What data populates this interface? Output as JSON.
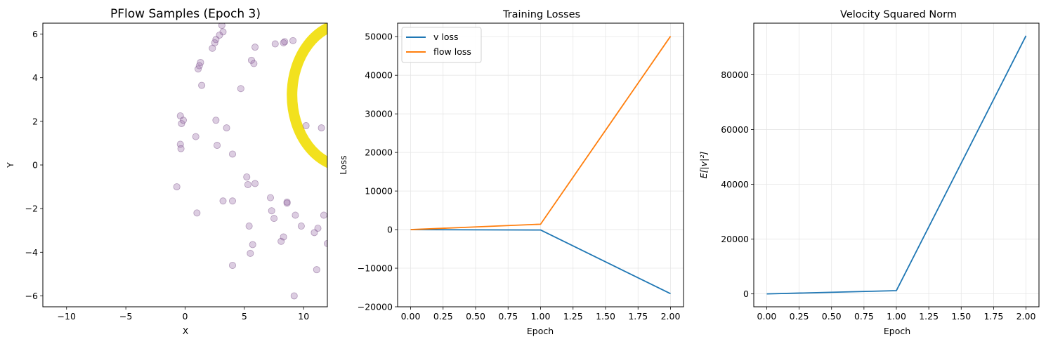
{
  "chart_data": [
    {
      "type": "scatter",
      "title": "PFlow Samples (Epoch 3)",
      "xlabel": "X",
      "ylabel": "Y",
      "xlim": [
        -12,
        12
      ],
      "ylim": [
        -6.5,
        6.5
      ],
      "grid": false,
      "xticks": [
        -10,
        -5,
        0,
        5,
        10
      ],
      "yticks": [
        -6,
        -4,
        -2,
        0,
        2,
        4,
        6
      ],
      "scatter_color": "#9b6fa8",
      "arc_color": "#f2e11e",
      "points": [
        [
          3.1,
          6.4
        ],
        [
          3.2,
          6.1
        ],
        [
          2.9,
          5.95
        ],
        [
          2.6,
          5.75
        ],
        [
          2.5,
          5.6
        ],
        [
          2.3,
          5.35
        ],
        [
          1.3,
          4.7
        ],
        [
          1.2,
          4.55
        ],
        [
          1.1,
          4.4
        ],
        [
          1.4,
          3.65
        ],
        [
          2.6,
          2.05
        ],
        [
          4.7,
          3.5
        ],
        [
          5.6,
          4.8
        ],
        [
          5.8,
          4.65
        ],
        [
          5.9,
          5.4
        ],
        [
          7.6,
          5.55
        ],
        [
          8.4,
          5.65
        ],
        [
          9.1,
          5.7
        ],
        [
          8.3,
          5.6
        ],
        [
          -0.4,
          2.25
        ],
        [
          -0.3,
          1.9
        ],
        [
          -0.15,
          2.05
        ],
        [
          0.9,
          1.3
        ],
        [
          2.7,
          0.9
        ],
        [
          3.5,
          1.7
        ],
        [
          -0.4,
          0.95
        ],
        [
          -0.35,
          0.75
        ],
        [
          4.0,
          0.5
        ],
        [
          -0.7,
          -1.0
        ],
        [
          5.2,
          -0.55
        ],
        [
          5.3,
          -0.9
        ],
        [
          5.9,
          -0.85
        ],
        [
          3.2,
          -1.65
        ],
        [
          4.0,
          -1.65
        ],
        [
          1.0,
          -2.2
        ],
        [
          7.2,
          -1.5
        ],
        [
          7.3,
          -2.1
        ],
        [
          7.5,
          -2.45
        ],
        [
          8.6,
          -1.7
        ],
        [
          8.6,
          -1.75
        ],
        [
          9.3,
          -2.3
        ],
        [
          9.8,
          -2.8
        ],
        [
          5.4,
          -2.8
        ],
        [
          5.7,
          -3.65
        ],
        [
          5.5,
          -4.05
        ],
        [
          4.0,
          -4.6
        ],
        [
          8.1,
          -3.5
        ],
        [
          8.3,
          -3.3
        ],
        [
          10.9,
          -3.1
        ],
        [
          11.2,
          -2.9
        ],
        [
          11.7,
          -2.3
        ],
        [
          12.0,
          -3.6
        ],
        [
          11.1,
          -4.8
        ],
        [
          9.2,
          -6.0
        ],
        [
          10.2,
          1.8
        ],
        [
          11.5,
          1.7
        ]
      ]
    },
    {
      "type": "line",
      "title": "Training Losses",
      "xlabel": "Epoch",
      "ylabel": "Loss",
      "xlim": [
        -0.1,
        2.1
      ],
      "ylim": [
        -20000,
        53500
      ],
      "grid": true,
      "legend": "top-left",
      "x": [
        0,
        1,
        2
      ],
      "xticks": [
        "0.00",
        "0.25",
        "0.50",
        "0.75",
        "1.00",
        "1.25",
        "1.50",
        "1.75",
        "2.00"
      ],
      "yticks": [
        -20000,
        -10000,
        0,
        10000,
        20000,
        30000,
        40000,
        50000
      ],
      "series": [
        {
          "name": "v loss",
          "color": "#1f77b4",
          "values": [
            0,
            -100,
            -16600
          ]
        },
        {
          "name": "flow loss",
          "color": "#ff7f0e",
          "values": [
            0,
            1400,
            50100
          ]
        }
      ]
    },
    {
      "type": "line",
      "title": "Velocity Squared Norm",
      "xlabel": "Epoch",
      "ylabel": "E[|v|²]",
      "xlim": [
        -0.1,
        2.1
      ],
      "ylim": [
        -4700,
        98800
      ],
      "grid": true,
      "x": [
        0,
        1,
        2
      ],
      "xticks": [
        "0.00",
        "0.25",
        "0.50",
        "0.75",
        "1.00",
        "1.25",
        "1.50",
        "1.75",
        "2.00"
      ],
      "yticks": [
        0,
        20000,
        40000,
        60000,
        80000
      ],
      "series": [
        {
          "color": "#1f77b4",
          "values": [
            0,
            1200,
            94200
          ]
        }
      ]
    }
  ]
}
